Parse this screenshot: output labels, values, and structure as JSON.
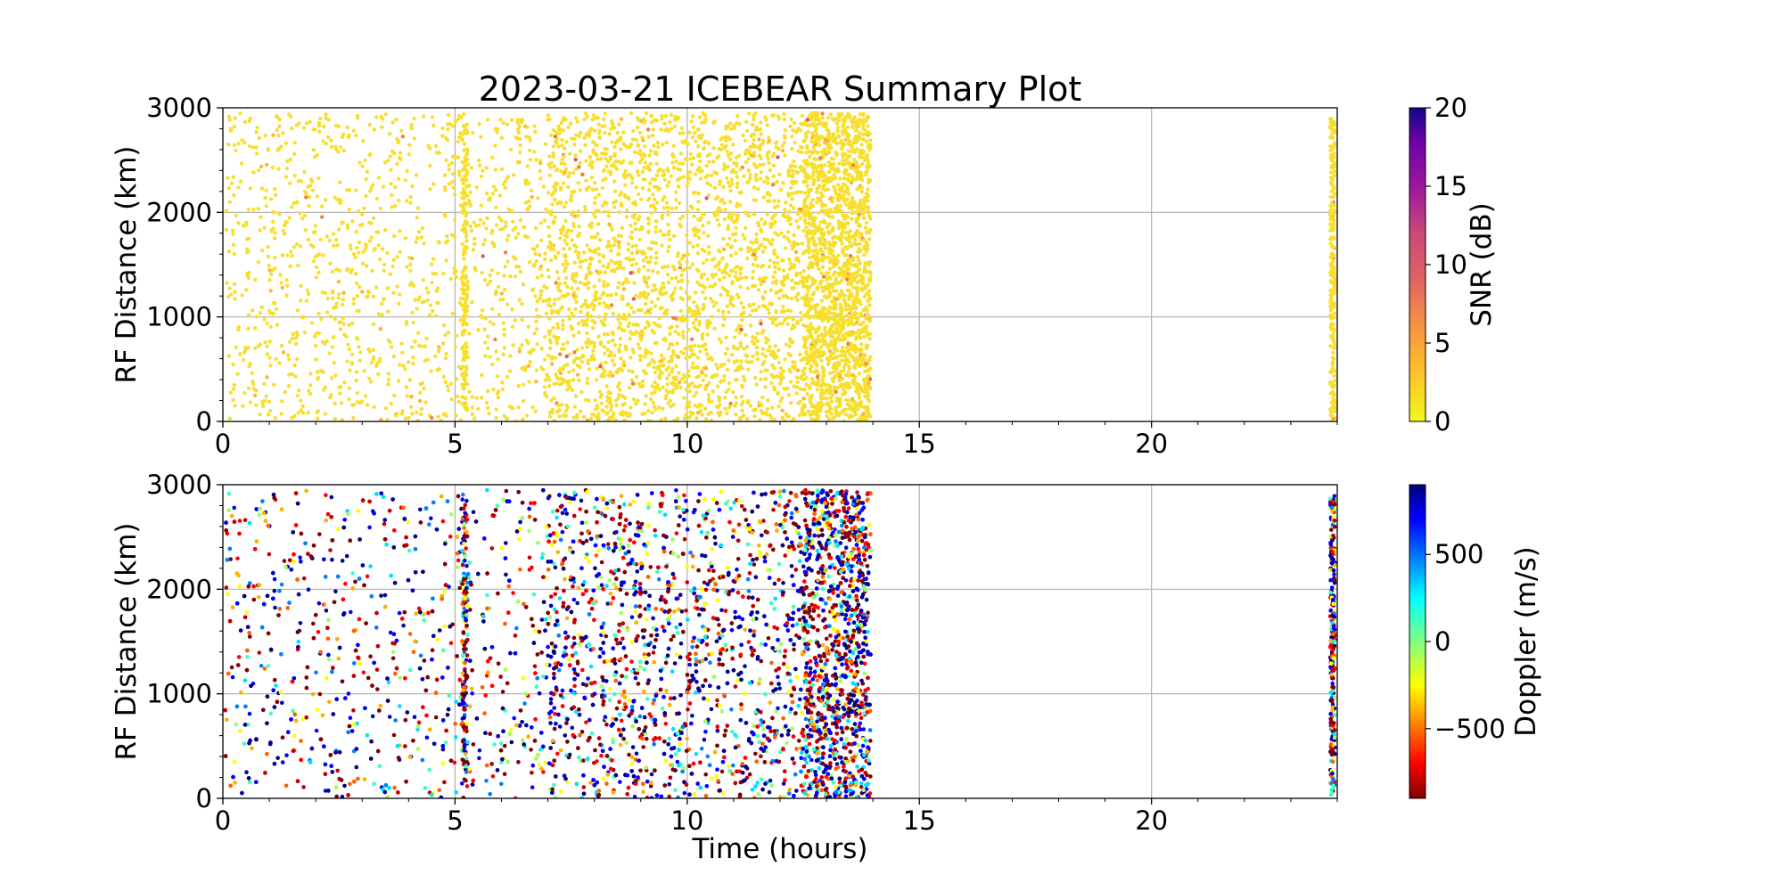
{
  "chart_data": [
    {
      "type": "scatter",
      "title": "2023-03-21 ICEBEAR Summary Plot",
      "xlabel": "",
      "ylabel": "RF Distance (km)",
      "xlim": [
        0,
        24
      ],
      "ylim": [
        0,
        3000
      ],
      "xticks": [
        0,
        5,
        10,
        15,
        20
      ],
      "yticks": [
        0,
        1000,
        2000,
        3000
      ],
      "grid": true,
      "colorbar": {
        "label": "SNR (dB)",
        "range": [
          0,
          20
        ],
        "ticks": [
          0,
          5,
          10,
          15,
          20
        ],
        "colormap": "plasma_r"
      },
      "series": [
        {
          "description_visible": "dense scatter of detections, mostly 0-3 dB",
          "time_range_hours": [
            0.05,
            13.95
          ],
          "late_time_range_hours": [
            23.85,
            23.95
          ],
          "range_km": [
            0,
            2950
          ],
          "density_peak_hours": [
            7,
            14
          ],
          "dominant_color": "#f9e13a"
        }
      ]
    },
    {
      "type": "scatter",
      "title": "",
      "xlabel": "Time (hours)",
      "ylabel": "RF Distance (km)",
      "xlim": [
        0,
        24
      ],
      "ylim": [
        0,
        3000
      ],
      "xticks": [
        0,
        5,
        10,
        15,
        20
      ],
      "yticks": [
        0,
        1000,
        2000,
        3000
      ],
      "grid": true,
      "colorbar": {
        "label": "Doppler (m/s)",
        "range": [
          -900,
          900
        ],
        "ticks": [
          -500,
          0,
          500
        ],
        "tick_labels": [
          "−500",
          "0",
          "500"
        ],
        "colormap": "jet_r"
      },
      "series": [
        {
          "description_visible": "dense scatter of detections colored by Doppler velocity",
          "time_range_hours": [
            0.05,
            13.95
          ],
          "late_time_range_hours": [
            23.85,
            23.95
          ],
          "range_km": [
            0,
            2950
          ],
          "density_peak_hours": [
            7,
            14
          ]
        }
      ]
    }
  ]
}
